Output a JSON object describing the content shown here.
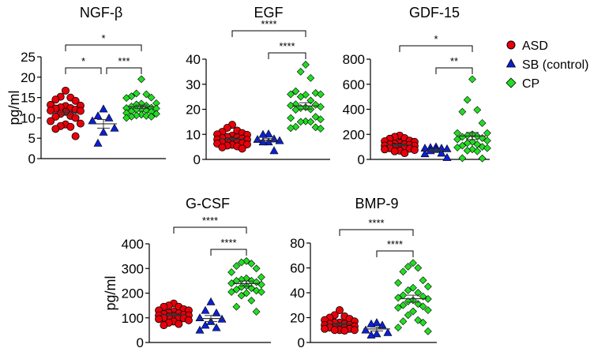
{
  "chart_data": [
    {
      "type": "scatter",
      "title": "NGF-β",
      "ylabel": "pg/ml",
      "ylim": [
        0,
        25
      ],
      "yticks": [
        0,
        5,
        10,
        15,
        20,
        25
      ],
      "ytick_labels": [
        "0",
        "5",
        "10",
        "15",
        "20",
        "25"
      ],
      "groups": [
        {
          "name": "ASD",
          "values": [
            16.7,
            15.2,
            15,
            14.5,
            14.2,
            13.2,
            13,
            12.9,
            12.6,
            12.4,
            12.3,
            12,
            11.8,
            11.7,
            11.5,
            11,
            10.5,
            10.3,
            10,
            9.2,
            8.6,
            8.4,
            8,
            7.8,
            7.3,
            5.5
          ]
        },
        {
          "name": "SB (control)",
          "values": [
            12.2,
            10.5,
            10,
            9.3,
            7.5,
            6.5,
            3.8
          ]
        },
        {
          "name": "CP",
          "values": [
            19.5,
            16,
            15.8,
            15.3,
            15,
            14.9,
            13.6,
            13.5,
            13.3,
            13,
            12.8,
            12.5,
            12.4,
            12.3,
            12,
            12,
            11.8,
            11.6,
            11.5,
            11.2,
            11,
            10.8,
            10.6,
            10.5,
            10.3,
            10.3,
            10
          ]
        }
      ],
      "comparisons": [
        {
          "from": "ASD",
          "to": "CP",
          "label": "*"
        },
        {
          "from": "ASD",
          "to": "SB (control)",
          "label": "*"
        },
        {
          "from": "SB (control)",
          "to": "CP",
          "label": "***"
        }
      ]
    },
    {
      "type": "scatter",
      "title": "EGF",
      "ylabel": "",
      "ylim": [
        0,
        40
      ],
      "yticks": [
        0,
        10,
        20,
        30,
        40
      ],
      "ytick_labels": [
        "0",
        "10",
        "20",
        "30",
        "40"
      ],
      "groups": [
        {
          "name": "ASD",
          "values": [
            13.8,
            12.6,
            11.5,
            11,
            10.5,
            10,
            9.8,
            9.5,
            9,
            8.8,
            8.5,
            8.3,
            8,
            7.8,
            7.5,
            7.2,
            7,
            6.8,
            6.5,
            6.3,
            6,
            5.8,
            5.5,
            5.2,
            4.8,
            4.3
          ]
        },
        {
          "name": "SB (control)",
          "values": [
            10.2,
            10,
            8.2,
            8,
            7.5,
            7,
            7,
            3.5
          ]
        },
        {
          "name": "CP",
          "values": [
            37.8,
            35,
            32.5,
            27.2,
            26.5,
            26,
            26,
            25.8,
            25,
            23.5,
            22,
            21.8,
            21.5,
            21,
            20.8,
            20.5,
            20,
            19.8,
            17,
            16.5,
            16,
            15.2,
            15,
            15,
            13,
            12.8,
            12.5,
            12.3
          ]
        }
      ],
      "comparisons": [
        {
          "from": "ASD",
          "to": "CP",
          "label": "****"
        },
        {
          "from": "SB (control)",
          "to": "CP",
          "label": "****"
        }
      ]
    },
    {
      "type": "scatter",
      "title": "GDF-15",
      "ylabel": "",
      "ylim": [
        0,
        800
      ],
      "yticks": [
        0,
        200,
        400,
        600,
        800
      ],
      "ytick_labels": [
        "0",
        "200",
        "400",
        "600",
        "800"
      ],
      "groups": [
        {
          "name": "ASD",
          "values": [
            190,
            180,
            170,
            165,
            150,
            145,
            140,
            130,
            125,
            120,
            120,
            115,
            110,
            108,
            100,
            100,
            95,
            90,
            85,
            80,
            75,
            70,
            65,
            50
          ]
        },
        {
          "name": "SB (control)",
          "values": [
            100,
            95,
            90,
            90,
            85,
            80,
            70,
            50,
            45,
            15
          ]
        },
        {
          "name": "CP",
          "values": [
            640,
            475,
            395,
            380,
            290,
            210,
            210,
            200,
            190,
            185,
            180,
            170,
            160,
            150,
            140,
            130,
            120,
            110,
            100,
            95,
            90,
            80,
            70,
            65,
            10,
            8
          ]
        }
      ],
      "comparisons": [
        {
          "from": "ASD",
          "to": "CP",
          "label": "*"
        },
        {
          "from": "SB (control)",
          "to": "CP",
          "label": "**"
        }
      ]
    },
    {
      "type": "scatter",
      "title": "G-CSF",
      "ylabel": "pg/ml",
      "ylim": [
        0,
        400
      ],
      "yticks": [
        0,
        100,
        200,
        300,
        400
      ],
      "ytick_labels": [
        "0",
        "100",
        "200",
        "300",
        "400"
      ],
      "groups": [
        {
          "name": "ASD",
          "values": [
            158,
            150,
            145,
            145,
            135,
            130,
            130,
            125,
            120,
            118,
            115,
            112,
            110,
            110,
            108,
            105,
            100,
            100,
            98,
            95,
            90,
            85,
            80,
            75,
            70
          ]
        },
        {
          "name": "SB (control)",
          "values": [
            165,
            130,
            120,
            100,
            95,
            85,
            70,
            60,
            50
          ]
        },
        {
          "name": "CP",
          "values": [
            330,
            325,
            320,
            310,
            300,
            285,
            265,
            260,
            255,
            250,
            250,
            245,
            240,
            235,
            230,
            225,
            220,
            215,
            210,
            205,
            205,
            200,
            190,
            170,
            145,
            125
          ]
        }
      ],
      "comparisons": [
        {
          "from": "ASD",
          "to": "CP",
          "label": "****"
        },
        {
          "from": "SB (control)",
          "to": "CP",
          "label": "****"
        }
      ]
    },
    {
      "type": "scatter",
      "title": "BMP-9",
      "ylabel": "",
      "ylim": [
        0,
        80
      ],
      "yticks": [
        0,
        20,
        40,
        60,
        80
      ],
      "ytick_labels": [
        "0",
        "20",
        "40",
        "60",
        "80"
      ],
      "groups": [
        {
          "name": "ASD",
          "values": [
            26,
            22,
            21,
            20,
            19,
            18,
            17,
            16,
            16,
            15,
            15,
            14,
            14,
            13,
            13,
            12,
            12,
            12,
            11,
            11,
            10,
            10,
            10,
            9.5
          ]
        },
        {
          "name": "SB (control)",
          "values": [
            16,
            15,
            14,
            10,
            8,
            7,
            6
          ]
        },
        {
          "name": "CP",
          "values": [
            64,
            61,
            60,
            57,
            50,
            48,
            45,
            44,
            42,
            40,
            38,
            37,
            36,
            35,
            34,
            33,
            31,
            30,
            29,
            28,
            26,
            25,
            22,
            18,
            17,
            16,
            12,
            9
          ]
        }
      ],
      "comparisons": [
        {
          "from": "ASD",
          "to": "CP",
          "label": "****"
        },
        {
          "from": "SB (control)",
          "to": "CP",
          "label": "****"
        }
      ]
    }
  ],
  "legend": {
    "placement": "top-right",
    "items": [
      {
        "label": "ASD",
        "marker": "circle",
        "color": "#e8000b"
      },
      {
        "label": "SB (control)",
        "marker": "triangle",
        "color": "#0a1fd6"
      },
      {
        "label": "CP",
        "marker": "diamond",
        "color": "#22dd22"
      }
    ]
  }
}
